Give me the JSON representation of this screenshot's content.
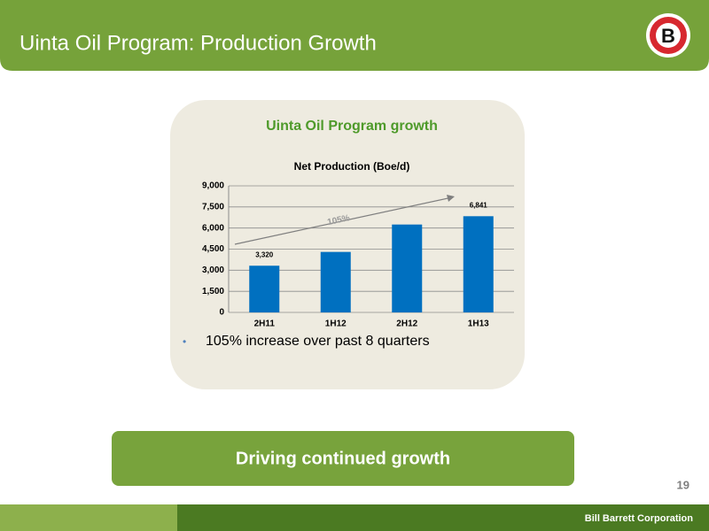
{
  "header": {
    "title": "Uinta Oil Program:  Production Growth",
    "logo": "B"
  },
  "panel": {
    "heading": "Uinta Oil Program growth",
    "bullet": "105% increase over past 8 quarters"
  },
  "chart_data": {
    "type": "bar",
    "title": "Net Production (Boe/d)",
    "categories": [
      "2H11",
      "1H12",
      "2H12",
      "1H13"
    ],
    "values": [
      3320,
      4300,
      6250,
      6841
    ],
    "value_labels": [
      "3,320",
      null,
      null,
      "6,841"
    ],
    "color": "#0070c0",
    "ylim": [
      0,
      9000
    ],
    "yticks": [
      0,
      {
        "value": 1500,
        "label": "1,500"
      },
      {
        "value": 3000,
        "label": "3,000"
      },
      {
        "value": 4500,
        "label": "4,500"
      },
      {
        "value": 6000,
        "label": "6,000"
      },
      {
        "value": 7500,
        "label": "7,500"
      },
      {
        "value": 9000,
        "label": "9,000"
      }
    ],
    "grid": true,
    "annotation": "105%"
  },
  "banner": "Driving continued growth",
  "page_number": 19,
  "footer": "Bill Barrett Corporation"
}
